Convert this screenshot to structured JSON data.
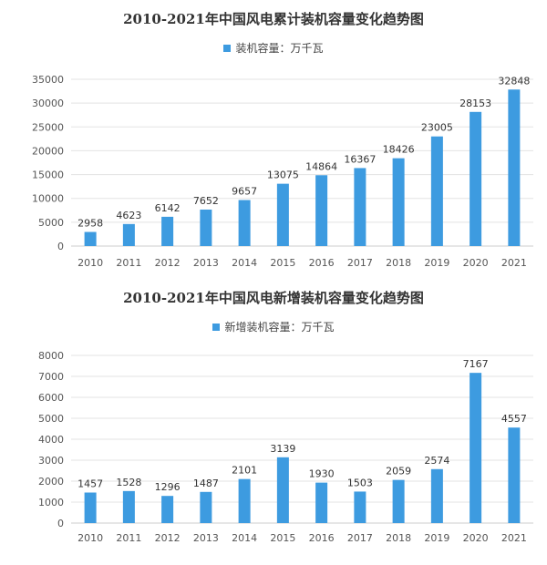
{
  "colors": {
    "bar": "#3d9be0",
    "axis_text": "#555555",
    "grid": "#e3e3e3"
  },
  "charts": [
    {
      "id": "chart1",
      "chart_data": {
        "type": "bar",
        "title": "2010-2021年中国风电累计装机容量变化趋势图",
        "legend": "装机容量：万千瓦",
        "categories": [
          "2010",
          "2011",
          "2012",
          "2013",
          "2014",
          "2015",
          "2016",
          "2017",
          "2018",
          "2019",
          "2020",
          "2021"
        ],
        "series": [
          {
            "name": "装机容量：万千瓦",
            "values": [
              2958,
              4623,
              6142,
              7652,
              9657,
              13075,
              14864,
              16367,
              18426,
              23005,
              28153,
              32848
            ]
          }
        ],
        "ylim": [
          0,
          35000
        ],
        "yticks": [
          0,
          5000,
          10000,
          15000,
          20000,
          25000,
          30000,
          35000
        ],
        "grid": true,
        "legend_position": "top-center"
      }
    },
    {
      "id": "chart2",
      "chart_data": {
        "type": "bar",
        "title": "2010-2021年中国风电新增装机容量变化趋势图",
        "legend": "新增装机容量：万千瓦",
        "categories": [
          "2010",
          "2011",
          "2012",
          "2013",
          "2014",
          "2015",
          "2016",
          "2017",
          "2018",
          "2019",
          "2020",
          "2021"
        ],
        "series": [
          {
            "name": "新增装机容量：万千瓦",
            "values": [
              1457,
              1528,
              1296,
              1487,
              2101,
              3139,
              1930,
              1503,
              2059,
              2574,
              7167,
              4557
            ]
          }
        ],
        "ylim": [
          0,
          8000
        ],
        "yticks": [
          0,
          1000,
          2000,
          3000,
          4000,
          5000,
          6000,
          7000,
          8000
        ],
        "grid": true,
        "legend_position": "top-center"
      }
    }
  ]
}
